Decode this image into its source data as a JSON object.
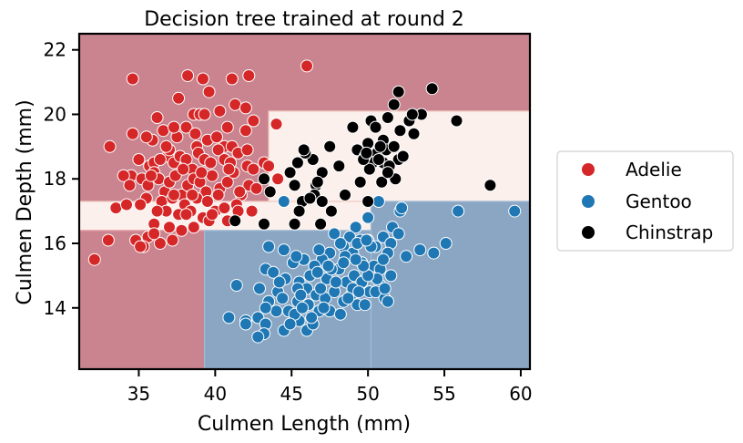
{
  "chart_data": {
    "type": "scatter",
    "title": "Decision tree trained at round 2",
    "xlabel": "Culmen Length (mm)",
    "ylabel": "Culmen Depth (mm)",
    "xlim": [
      31.1,
      60.6
    ],
    "ylim": [
      12.1,
      22.5
    ],
    "xticks": [
      35,
      40,
      45,
      50,
      55,
      60
    ],
    "yticks": [
      14,
      16,
      18,
      20,
      22
    ],
    "legend_position": "right",
    "colors": {
      "Adelie": "#d62728",
      "Gentoo": "#1f77b4",
      "Chinstrap": "#000000"
    },
    "region_colors": {
      "Adelie": "#c98490",
      "Gentoo": "#8aa6c3",
      "Chinstrap": "#fbf0ec"
    },
    "decision_regions": [
      {
        "class": "Adelie",
        "x": [
          31.1,
          60.6
        ],
        "y": [
          17.3,
          22.5
        ]
      },
      {
        "class": "Chinstrap",
        "x": [
          43.5,
          60.6
        ],
        "y": [
          17.3,
          20.1
        ]
      },
      {
        "class": "Chinstrap",
        "x": [
          31.1,
          60.6
        ],
        "y": [
          16.4,
          17.3
        ]
      },
      {
        "class": "Adelie",
        "x": [
          31.1,
          39.3
        ],
        "y": [
          12.1,
          16.4
        ]
      },
      {
        "class": "Gentoo",
        "x": [
          39.3,
          50.2
        ],
        "y": [
          12.1,
          16.4
        ]
      },
      {
        "class": "Gentoo",
        "x": [
          50.2,
          60.6
        ],
        "y": [
          12.1,
          17.3
        ]
      }
    ],
    "series": [
      {
        "name": "Adelie",
        "points": [
          [
            34.6,
            21.1
          ],
          [
            38.2,
            21.2
          ],
          [
            39.2,
            21.1
          ],
          [
            39.6,
            20.7
          ],
          [
            41.1,
            21.1
          ],
          [
            42.2,
            21.2
          ],
          [
            46.0,
            21.5
          ],
          [
            36.2,
            19.9
          ],
          [
            37.6,
            20.5
          ],
          [
            38.6,
            20.0
          ],
          [
            39.0,
            20.0
          ],
          [
            40.3,
            20.1
          ],
          [
            41.3,
            20.3
          ],
          [
            42.0,
            20.2
          ],
          [
            38.1,
            19.6
          ],
          [
            40.6,
            19.0
          ],
          [
            34.6,
            19.4
          ],
          [
            35.9,
            19.2
          ],
          [
            36.6,
            19.5
          ],
          [
            37.5,
            19.3
          ],
          [
            38.8,
            19.0
          ],
          [
            39.5,
            19.2
          ],
          [
            41.1,
            19.0
          ],
          [
            42.0,
            19.5
          ],
          [
            42.5,
            19.8
          ],
          [
            40.1,
            19.3
          ],
          [
            36.9,
            18.7
          ],
          [
            35.5,
            19.3
          ],
          [
            33.1,
            19.0
          ],
          [
            34.5,
            18.1
          ],
          [
            35.0,
            18.6
          ],
          [
            35.7,
            18.4
          ],
          [
            36.0,
            18.5
          ],
          [
            36.4,
            18.6
          ],
          [
            37.0,
            18.9
          ],
          [
            37.3,
            18.5
          ],
          [
            37.7,
            18.7
          ],
          [
            38.1,
            18.6
          ],
          [
            38.5,
            18.3
          ],
          [
            38.9,
            18.8
          ],
          [
            39.3,
            18.6
          ],
          [
            39.7,
            18.5
          ],
          [
            40.2,
            18.9
          ],
          [
            40.6,
            18.6
          ],
          [
            41.0,
            18.5
          ],
          [
            41.5,
            18.8
          ],
          [
            42.1,
            18.4
          ],
          [
            42.5,
            18.3
          ],
          [
            43.2,
            18.5
          ],
          [
            33.5,
            17.1
          ],
          [
            34.0,
            18.1
          ],
          [
            34.4,
            17.8
          ],
          [
            35.2,
            18.0
          ],
          [
            35.6,
            17.8
          ],
          [
            36.0,
            18.2
          ],
          [
            36.3,
            18.0
          ],
          [
            36.7,
            17.6
          ],
          [
            37.0,
            17.9
          ],
          [
            37.4,
            18.1
          ],
          [
            37.8,
            17.5
          ],
          [
            38.2,
            17.8
          ],
          [
            38.6,
            18.0
          ],
          [
            39.0,
            17.9
          ],
          [
            39.4,
            17.6
          ],
          [
            39.8,
            18.1
          ],
          [
            40.3,
            17.7
          ],
          [
            40.8,
            17.9
          ],
          [
            41.2,
            18.2
          ],
          [
            41.7,
            17.5
          ],
          [
            42.2,
            17.8
          ],
          [
            42.7,
            17.7
          ],
          [
            43.5,
            18.4
          ],
          [
            44.1,
            18.0
          ],
          [
            44.0,
            19.7
          ],
          [
            35.5,
            17.4
          ],
          [
            36.5,
            17.3
          ],
          [
            37.2,
            17.4
          ],
          [
            38.0,
            17.2
          ],
          [
            38.8,
            17.4
          ],
          [
            39.5,
            17.3
          ],
          [
            40.2,
            17.5
          ],
          [
            41.4,
            17.2
          ],
          [
            34.2,
            17.2
          ],
          [
            35.1,
            17.2
          ],
          [
            36.0,
            16.6
          ],
          [
            36.8,
            17.0
          ],
          [
            37.6,
            16.9
          ],
          [
            38.4,
            17.0
          ],
          [
            39.2,
            16.8
          ],
          [
            40.0,
            17.0
          ],
          [
            40.8,
            16.7
          ],
          [
            41.5,
            17.0
          ],
          [
            37.0,
            16.5
          ],
          [
            37.8,
            16.4
          ],
          [
            38.6,
            16.5
          ],
          [
            39.6,
            16.7
          ],
          [
            35.6,
            16.2
          ],
          [
            36.4,
            16.0
          ],
          [
            37.2,
            16.1
          ],
          [
            35.3,
            15.9
          ],
          [
            34.8,
            16.1
          ],
          [
            33.0,
            16.1
          ],
          [
            32.1,
            15.5
          ],
          [
            35.1,
            15.9
          ],
          [
            36.0,
            16.3
          ],
          [
            38.1,
            16.9
          ],
          [
            37.3,
            17.5
          ],
          [
            38.5,
            17.5
          ],
          [
            39.8,
            16.9
          ],
          [
            40.6,
            17.1
          ],
          [
            41.6,
            17.6
          ],
          [
            42.4,
            17.0
          ],
          [
            36.2,
            17.0
          ],
          [
            37.9,
            18.3
          ],
          [
            39.1,
            18.2
          ],
          [
            40.9,
            18.3
          ],
          [
            39.3,
            20.0
          ],
          [
            42.1,
            18.9
          ],
          [
            40.8,
            19.6
          ],
          [
            38.7,
            19.4
          ],
          [
            36.8,
            19.0
          ],
          [
            37.3,
            19.6
          ],
          [
            35.8,
            18.1
          ]
        ]
      },
      {
        "name": "Gentoo",
        "points": [
          [
            44.5,
            17.3
          ],
          [
            50.0,
            16.8
          ],
          [
            50.7,
            17.3
          ],
          [
            52.1,
            17.0
          ],
          [
            52.2,
            17.1
          ],
          [
            59.6,
            17.0
          ],
          [
            55.9,
            17.0
          ],
          [
            49.2,
            16.5
          ],
          [
            51.6,
            16.5
          ],
          [
            52.0,
            16.3
          ],
          [
            48.8,
            16.2
          ],
          [
            49.5,
            16.1
          ],
          [
            50.0,
            16.1
          ],
          [
            50.5,
            15.9
          ],
          [
            51.0,
            16.2
          ],
          [
            51.5,
            16.0
          ],
          [
            50.2,
            15.9
          ],
          [
            47.8,
            16.3
          ],
          [
            48.4,
            15.9
          ],
          [
            49.0,
            15.7
          ],
          [
            49.6,
            15.4
          ],
          [
            50.4,
            15.3
          ],
          [
            50.8,
            15.2
          ],
          [
            51.3,
            15.7
          ],
          [
            47.5,
            15.7
          ],
          [
            47.0,
            15.5
          ],
          [
            46.5,
            15.3
          ],
          [
            45.8,
            15.5
          ],
          [
            46.2,
            15.0
          ],
          [
            47.3,
            14.9
          ],
          [
            48.1,
            15.2
          ],
          [
            48.6,
            14.8
          ],
          [
            49.1,
            15.0
          ],
          [
            49.6,
            14.8
          ],
          [
            50.1,
            14.5
          ],
          [
            50.8,
            14.7
          ],
          [
            50.6,
            14.9
          ],
          [
            45.1,
            15.4
          ],
          [
            44.6,
            14.9
          ],
          [
            44.1,
            14.5
          ],
          [
            45.5,
            14.8
          ],
          [
            46.0,
            14.6
          ],
          [
            46.6,
            14.4
          ],
          [
            47.2,
            14.3
          ],
          [
            47.8,
            14.5
          ],
          [
            48.4,
            14.2
          ],
          [
            48.9,
            14.4
          ],
          [
            49.3,
            14.1
          ],
          [
            43.3,
            15.2
          ],
          [
            42.9,
            14.6
          ],
          [
            43.5,
            14.2
          ],
          [
            44.0,
            13.9
          ],
          [
            44.8,
            13.9
          ],
          [
            45.4,
            14.2
          ],
          [
            46.1,
            14.1
          ],
          [
            46.8,
            13.9
          ],
          [
            47.5,
            13.9
          ],
          [
            48.2,
            13.8
          ],
          [
            43.3,
            14.0
          ],
          [
            42.8,
            13.7
          ],
          [
            42.0,
            13.6
          ],
          [
            41.4,
            14.7
          ],
          [
            40.9,
            13.7
          ],
          [
            42.0,
            13.5
          ],
          [
            43.3,
            13.5
          ],
          [
            43.2,
            13.2
          ],
          [
            42.8,
            13.1
          ],
          [
            44.5,
            13.3
          ],
          [
            45.5,
            13.6
          ],
          [
            46.0,
            13.3
          ],
          [
            46.4,
            13.5
          ],
          [
            45.2,
            13.8
          ],
          [
            46.3,
            13.7
          ],
          [
            47.1,
            14.0
          ],
          [
            44.9,
            13.5
          ],
          [
            49.8,
            14.1
          ],
          [
            50.5,
            14.5
          ],
          [
            51.1,
            14.3
          ],
          [
            51.3,
            14.2
          ],
          [
            49.0,
            14.6
          ],
          [
            50.0,
            15.0
          ],
          [
            51.1,
            14.6
          ],
          [
            51.5,
            15.0
          ],
          [
            52.5,
            15.6
          ],
          [
            53.4,
            15.8
          ],
          [
            54.3,
            15.7
          ],
          [
            55.1,
            16.0
          ],
          [
            49.7,
            15.3
          ],
          [
            48.5,
            15.6
          ],
          [
            48.2,
            16.0
          ],
          [
            49.3,
            16.0
          ],
          [
            47.6,
            15.2
          ],
          [
            46.8,
            15.8
          ],
          [
            45.3,
            15.6
          ],
          [
            43.5,
            15.9
          ],
          [
            43.8,
            15.1
          ],
          [
            44.5,
            15.8
          ],
          [
            44.2,
            14.8
          ],
          [
            45.4,
            14.6
          ],
          [
            46.9,
            14.6
          ],
          [
            47.9,
            14.8
          ],
          [
            48.7,
            14.3
          ],
          [
            49.4,
            14.5
          ],
          [
            45.7,
            14.0
          ],
          [
            44.4,
            14.3
          ],
          [
            45.6,
            14.4
          ],
          [
            46.7,
            15.1
          ],
          [
            47.4,
            15.3
          ],
          [
            48.4,
            15.4
          ],
          [
            49.2,
            15.5
          ],
          [
            49.9,
            16.1
          ],
          [
            51.0,
            15.5
          ]
        ]
      },
      {
        "name": "Chinstrap",
        "points": [
          [
            54.2,
            20.8
          ],
          [
            52.0,
            20.7
          ],
          [
            51.7,
            20.3
          ],
          [
            52.7,
            19.8
          ],
          [
            53.5,
            20.0
          ],
          [
            52.9,
            20.0
          ],
          [
            55.8,
            19.8
          ],
          [
            49.0,
            19.6
          ],
          [
            50.2,
            19.8
          ],
          [
            50.5,
            19.6
          ],
          [
            51.3,
            19.9
          ],
          [
            52.1,
            19.5
          ],
          [
            51.0,
            19.2
          ],
          [
            49.3,
            18.9
          ],
          [
            50.0,
            19.1
          ],
          [
            50.6,
            18.8
          ],
          [
            51.2,
            18.9
          ],
          [
            51.7,
            19.0
          ],
          [
            52.0,
            18.6
          ],
          [
            51.0,
            18.5
          ],
          [
            50.3,
            18.5
          ],
          [
            49.8,
            18.7
          ],
          [
            49.5,
            17.9
          ],
          [
            50.1,
            18.3
          ],
          [
            51.4,
            18.4
          ],
          [
            50.9,
            17.9
          ],
          [
            51.8,
            18.0
          ],
          [
            52.3,
            18.7
          ],
          [
            47.5,
            19.0
          ],
          [
            46.4,
            18.6
          ],
          [
            45.9,
            18.8
          ],
          [
            45.4,
            18.5
          ],
          [
            46.6,
            17.8
          ],
          [
            47.0,
            18.2
          ],
          [
            48.1,
            18.4
          ],
          [
            48.5,
            17.5
          ],
          [
            45.2,
            17.8
          ],
          [
            44.9,
            18.2
          ],
          [
            43.2,
            18.0
          ],
          [
            43.6,
            17.6
          ],
          [
            45.7,
            17.3
          ],
          [
            45.5,
            17.0
          ],
          [
            45.2,
            16.6
          ],
          [
            43.2,
            16.6
          ],
          [
            41.3,
            16.7
          ],
          [
            46.9,
            16.6
          ],
          [
            46.5,
            17.5
          ],
          [
            47.6,
            17.0
          ],
          [
            50.0,
            17.3
          ],
          [
            49.7,
            18.6
          ],
          [
            46.2,
            17.4
          ],
          [
            50.8,
            19.0
          ],
          [
            51.3,
            18.2
          ],
          [
            53.0,
            19.4
          ],
          [
            50.7,
            18.6
          ],
          [
            58.0,
            17.8
          ],
          [
            47.0,
            17.3
          ],
          [
            45.8,
            18.9
          ],
          [
            46.7,
            17.9
          ],
          [
            49.9,
            18.8
          ]
        ]
      }
    ]
  }
}
